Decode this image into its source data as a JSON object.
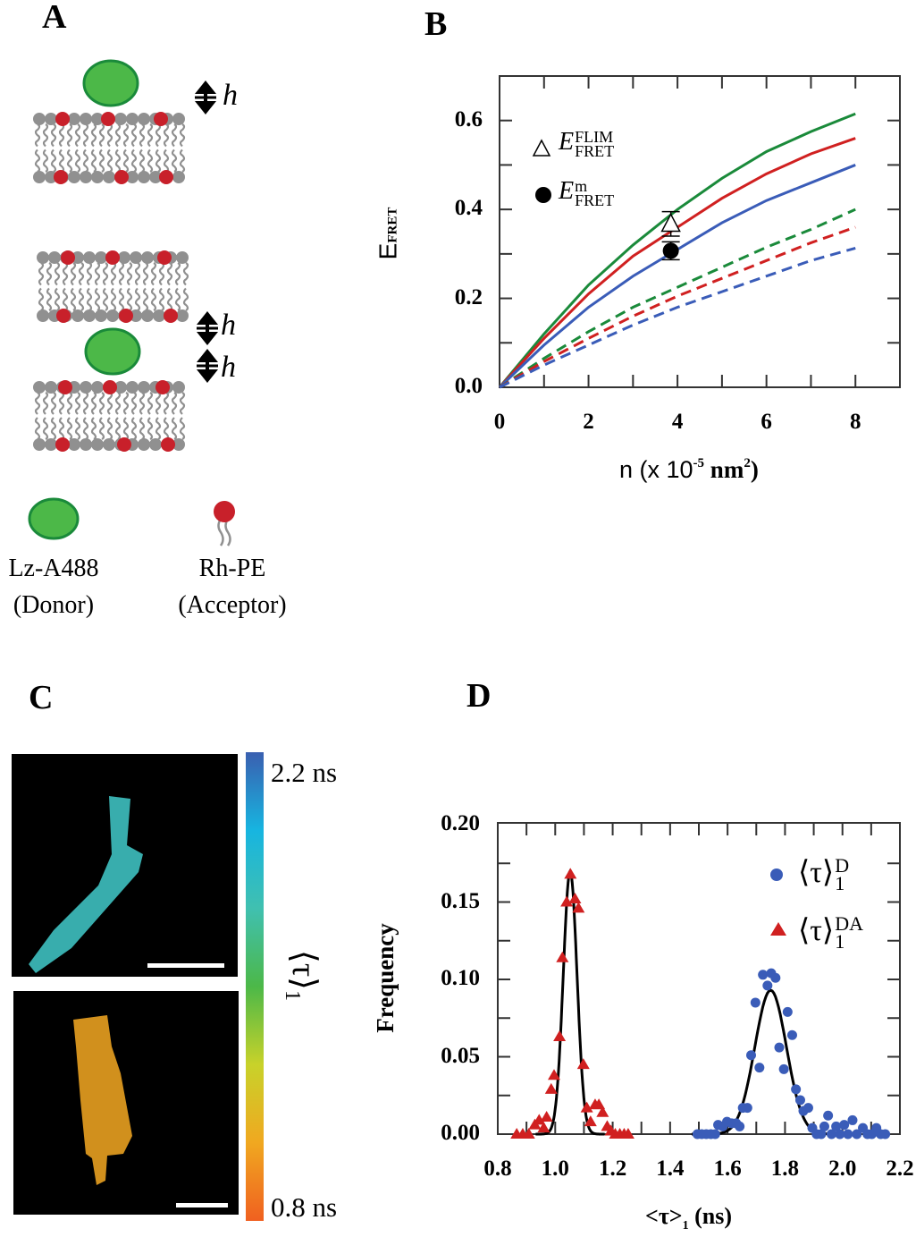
{
  "panels": {
    "a": {
      "label": "A",
      "height_symbol": "h",
      "donor_name": "Lz-A488",
      "donor_role": "(Donor)",
      "acceptor_name": "Rh-PE",
      "acceptor_role": "(Acceptor)",
      "colors": {
        "donor": "#4cb848",
        "donor_edge": "#1a8a3a",
        "acceptor": "#c8202a",
        "lipid": "#909090"
      }
    },
    "b": {
      "label": "B"
    },
    "c": {
      "label": "C",
      "colorbar_max": "2.2 ns",
      "colorbar_min": "0.8 ns",
      "colorbar_title": "⟨τ⟩",
      "colorbar_title_sub": "1",
      "colorbar_colors": [
        "#3a5fb0",
        "#17b5e0",
        "#40c0b0",
        "#4cb848",
        "#c8d22a",
        "#f0a820",
        "#f06020"
      ]
    },
    "d": {
      "label": "D"
    }
  },
  "chart_data": [
    {
      "type": "line",
      "panel": "B",
      "ylabel": "E",
      "ylabel_sub": "FRET",
      "xlabel_prefix": "n (x 10",
      "xlabel_exp": "-5",
      "xlabel_unit": " nm",
      "xlabel_unit_exp": "2",
      "xlabel_suffix": ")",
      "xlim": [
        0,
        9
      ],
      "ylim": [
        0,
        0.7
      ],
      "xticks": [
        "0",
        "2",
        "4",
        "6",
        "8"
      ],
      "yticks": [
        "0.0",
        "0.2",
        "0.4",
        "0.6"
      ],
      "grid": false,
      "legend_position": "top-left",
      "x": [
        0,
        1,
        2,
        3,
        4,
        5,
        6,
        7,
        8
      ],
      "series": [
        {
          "color": "#1a8a3a",
          "style": "solid",
          "values": [
            0,
            0.12,
            0.23,
            0.32,
            0.4,
            0.47,
            0.53,
            0.575,
            0.615
          ]
        },
        {
          "color": "#d02020",
          "style": "solid",
          "values": [
            0,
            0.11,
            0.21,
            0.295,
            0.36,
            0.425,
            0.48,
            0.525,
            0.56
          ]
        },
        {
          "color": "#3a5cb8",
          "style": "solid",
          "values": [
            0,
            0.095,
            0.18,
            0.25,
            0.31,
            0.37,
            0.42,
            0.46,
            0.5
          ]
        },
        {
          "color": "#1a8a3a",
          "style": "dashed",
          "values": [
            0,
            0.065,
            0.125,
            0.18,
            0.225,
            0.27,
            0.315,
            0.355,
            0.4
          ]
        },
        {
          "color": "#d02020",
          "style": "dashed",
          "values": [
            0,
            0.058,
            0.11,
            0.16,
            0.205,
            0.245,
            0.285,
            0.325,
            0.36
          ]
        },
        {
          "color": "#3a5cb8",
          "style": "dashed",
          "values": [
            0,
            0.05,
            0.095,
            0.14,
            0.18,
            0.215,
            0.25,
            0.285,
            0.313
          ]
        }
      ],
      "points": [
        {
          "name": "E",
          "sup": "FLIM",
          "sub": "FRET",
          "marker": "open-triangle",
          "x": 3.85,
          "y": 0.367,
          "err_low": 0.34,
          "err_high": 0.395
        },
        {
          "name": "E",
          "sup": "m",
          "sub": "FRET",
          "marker": "filled-circle",
          "x": 3.85,
          "y": 0.307,
          "err_low": 0.287,
          "err_high": 0.327
        }
      ]
    },
    {
      "type": "scatter",
      "panel": "D",
      "ylabel": "Frequency",
      "xlabel": "<τ>",
      "xlabel_sub": "1",
      "xlabel_suffix": " (ns)",
      "xlim": [
        0.8,
        2.2
      ],
      "ylim": [
        0,
        0.2
      ],
      "xticks": [
        "0.8",
        "1.0",
        "1.2",
        "1.4",
        "1.6",
        "1.8",
        "2.0",
        "2.2"
      ],
      "yticks": [
        "0.00",
        "0.05",
        "0.10",
        "0.15",
        "0.20"
      ],
      "grid": false,
      "legend_position": "top-right",
      "series": [
        {
          "name": "⟨τ⟩",
          "sup": "D",
          "sub": "1",
          "color": "#3a5cb8",
          "marker": "circle",
          "x": [
            1.495,
            1.51,
            1.526,
            1.542,
            1.557,
            1.567,
            1.583,
            1.598,
            1.614,
            1.63,
            1.642,
            1.653,
            1.669,
            1.682,
            1.697,
            1.711,
            1.723,
            1.739,
            1.752,
            1.767,
            1.78,
            1.796,
            1.809,
            1.825,
            1.838,
            1.853,
            1.864,
            1.881,
            1.895,
            1.91,
            1.926,
            1.937,
            1.95,
            1.962,
            1.978,
            1.991,
            2.006,
            2.019,
            2.035,
            2.05,
            2.071,
            2.087,
            2.102,
            2.118,
            2.133,
            2.149
          ],
          "y": [
            0,
            0,
            0,
            0,
            0,
            0.006,
            0.005,
            0.008,
            0.007,
            0.007,
            0.005,
            0.017,
            0.017,
            0.051,
            0.085,
            0.043,
            0.103,
            0.096,
            0.104,
            0.101,
            0.056,
            0.042,
            0.079,
            0.064,
            0.029,
            0.022,
            0.015,
            0.017,
            0.004,
            0,
            0,
            0.005,
            0.012,
            0,
            0.005,
            0,
            0.006,
            0,
            0.009,
            0,
            0.004,
            0,
            0,
            0.004,
            0,
            0
          ],
          "fit": {
            "center": 1.75,
            "amplitude": 0.093,
            "sigma": 0.055
          }
        },
        {
          "name": "⟨τ⟩",
          "sup": "DA",
          "sub": "1",
          "color": "#d02020",
          "marker": "triangle",
          "x": [
            0.866,
            0.887,
            0.908,
            0.929,
            0.944,
            0.96,
            0.97,
            0.986,
            0.996,
            1.015,
            1.025,
            1.04,
            1.053,
            1.069,
            1.081,
            1.098,
            1.11,
            1.123,
            1.139,
            1.152,
            1.165,
            1.181,
            1.194,
            1.209,
            1.225,
            1.24,
            1.254
          ],
          "y": [
            0,
            0,
            0,
            0.006,
            0.009,
            0.004,
            0.011,
            0.029,
            0.038,
            0.063,
            0.114,
            0.15,
            0.168,
            0.152,
            0.146,
            0.045,
            0.017,
            0.008,
            0.019,
            0.019,
            0.014,
            0.005,
            0.002,
            0,
            0,
            0,
            0
          ],
          "fit": {
            "center": 1.052,
            "amplitude": 0.17,
            "sigma": 0.024
          }
        }
      ]
    }
  ]
}
